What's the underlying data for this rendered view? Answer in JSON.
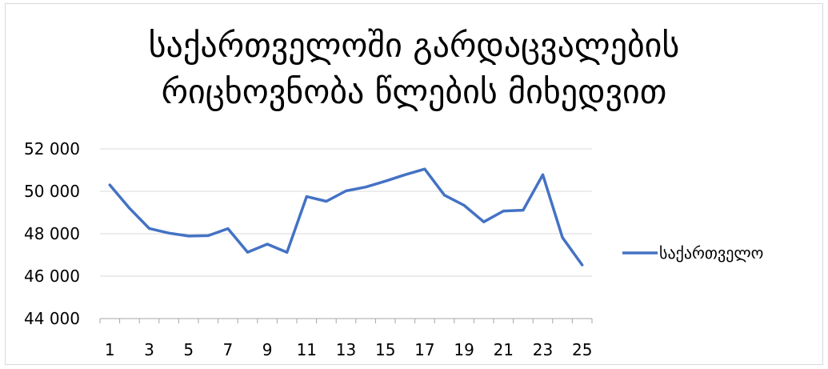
{
  "chart_data": {
    "type": "line",
    "title_lines": [
      "საქართველოში  გარდაცვალების",
      "რიცხოვნობა წლების მიხედვით"
    ],
    "xlabel": "",
    "ylabel": "",
    "x": [
      1,
      2,
      3,
      4,
      5,
      6,
      7,
      8,
      9,
      10,
      11,
      12,
      13,
      14,
      15,
      16,
      17,
      18,
      19,
      20,
      21,
      22,
      23,
      24,
      25
    ],
    "x_tick_labels": [
      "1",
      "3",
      "5",
      "7",
      "9",
      "11",
      "13",
      "15",
      "17",
      "19",
      "21",
      "23",
      "25"
    ],
    "y_tick_labels": [
      "52 000",
      "50 000",
      "48 000",
      "46 000",
      "44 000"
    ],
    "ylim": [
      44000,
      52000
    ],
    "series": [
      {
        "name": "საქართველო",
        "values": [
          50300,
          49200,
          48250,
          48030,
          47890,
          47910,
          48240,
          47130,
          47510,
          47120,
          49750,
          49530,
          50020,
          50200,
          50480,
          50780,
          51050,
          49820,
          49340,
          48560,
          49070,
          49110,
          50780,
          47820,
          46530
        ]
      }
    ],
    "line_color": "#4472c4",
    "grid": true,
    "legend_position": "right"
  }
}
